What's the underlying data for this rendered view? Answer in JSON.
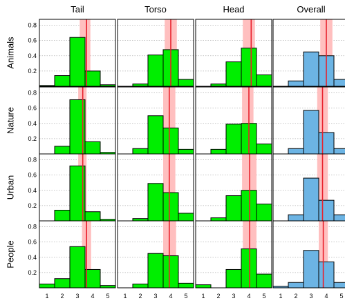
{
  "chart_data": {
    "type": "bar",
    "column_titles": [
      "Tail",
      "Torso",
      "Head",
      "Overall"
    ],
    "row_titles": [
      "Animals",
      "Nature",
      "Urban",
      "People"
    ],
    "categories": [
      "1",
      "2",
      "3",
      "4",
      "5"
    ],
    "y_ticks": [
      "0.2",
      "0.4",
      "0.6",
      "0.8"
    ],
    "ylim": [
      0,
      0.85
    ],
    "xlim": [
      0.5,
      5.5
    ],
    "grid": true,
    "colors": {
      "bar_green": "#00ee00",
      "bar_blue": "#6cb4e4",
      "band": "#ffbfbf",
      "mean_line": "#e8202c",
      "grid": "#b0b0b0",
      "frame": "#000000"
    },
    "panels": [
      [
        {
          "values": [
            0.01,
            0.14,
            0.64,
            0.2,
            0.02
          ],
          "band": [
            3.15,
            3.85
          ],
          "mean": 3.6
        },
        {
          "values": [
            0.0,
            0.03,
            0.41,
            0.48,
            0.09
          ],
          "band": [
            3.6,
            4.4
          ],
          "mean": 4.0
        },
        {
          "values": [
            0.0,
            0.03,
            0.32,
            0.5,
            0.15
          ],
          "band": [
            3.6,
            4.4
          ],
          "mean": 4.15
        },
        {
          "values": [
            0.0,
            0.07,
            0.45,
            0.4,
            0.09
          ],
          "band": [
            3.6,
            4.4
          ],
          "mean": 4.0
        }
      ],
      [
        {
          "values": [
            0.0,
            0.1,
            0.71,
            0.16,
            0.02
          ],
          "band": [
            3.05,
            3.6
          ],
          "mean": 3.35
        },
        {
          "values": [
            0.0,
            0.07,
            0.5,
            0.34,
            0.06
          ],
          "band": [
            3.5,
            4.3
          ],
          "mean": 3.9
        },
        {
          "values": [
            0.0,
            0.06,
            0.39,
            0.4,
            0.13
          ],
          "band": [
            3.55,
            4.3
          ],
          "mean": 4.0
        },
        {
          "values": [
            0.0,
            0.07,
            0.57,
            0.28,
            0.07
          ],
          "band": [
            3.4,
            4.1
          ],
          "mean": 3.75
        }
      ],
      [
        {
          "values": [
            0.0,
            0.14,
            0.72,
            0.12,
            0.02
          ],
          "band": [
            3.05,
            3.6
          ],
          "mean": 3.35
        },
        {
          "values": [
            0.0,
            0.03,
            0.49,
            0.37,
            0.1
          ],
          "band": [
            3.5,
            4.3
          ],
          "mean": 3.9
        },
        {
          "values": [
            0.0,
            0.04,
            0.33,
            0.4,
            0.22
          ],
          "band": [
            3.55,
            4.5
          ],
          "mean": 4.05
        },
        {
          "values": [
            0.0,
            0.08,
            0.56,
            0.27,
            0.08
          ],
          "band": [
            3.4,
            4.1
          ],
          "mean": 3.75
        }
      ],
      [
        {
          "values": [
            0.05,
            0.12,
            0.54,
            0.24,
            0.03
          ],
          "band": [
            3.3,
            3.9
          ],
          "mean": 3.6
        },
        {
          "values": [
            0.0,
            0.05,
            0.45,
            0.42,
            0.06
          ],
          "band": [
            3.5,
            4.35
          ],
          "mean": 3.9
        },
        {
          "values": [
            0.04,
            0.0,
            0.24,
            0.51,
            0.18
          ],
          "band": [
            3.6,
            4.5
          ],
          "mean": 4.05
        },
        {
          "values": [
            0.02,
            0.07,
            0.49,
            0.34,
            0.07
          ],
          "band": [
            3.5,
            4.1
          ],
          "mean": 3.8
        }
      ]
    ]
  }
}
